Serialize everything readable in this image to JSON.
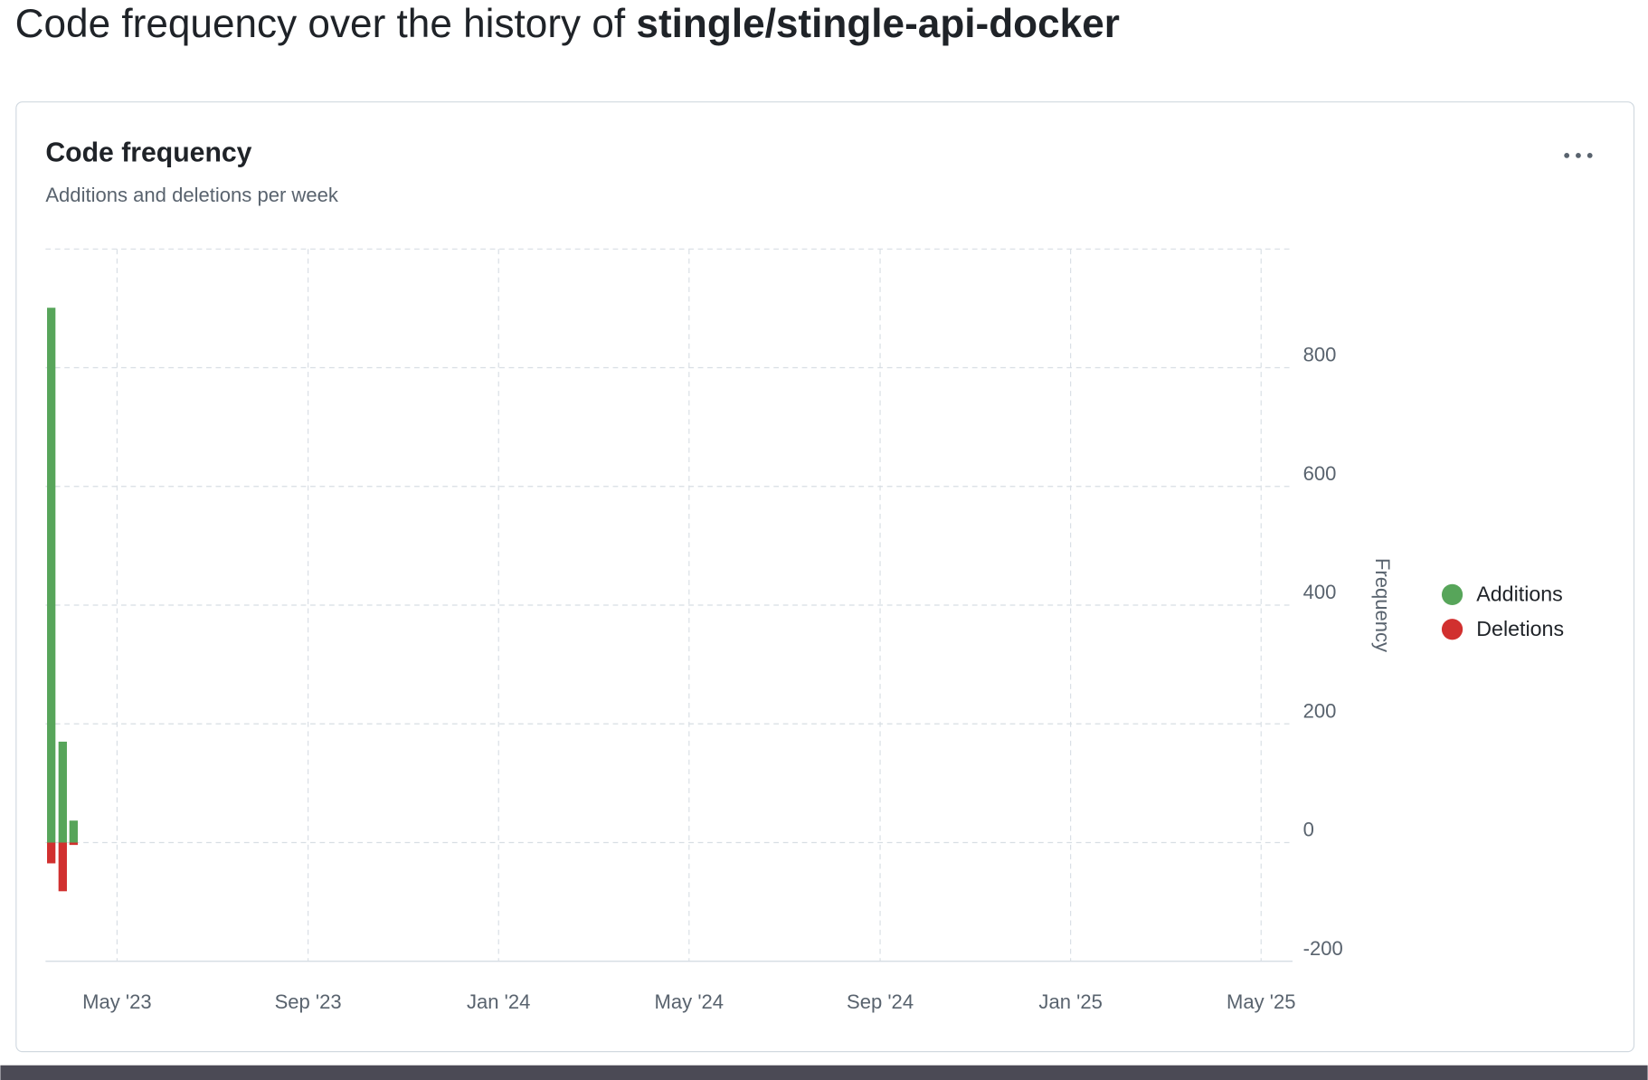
{
  "header": {
    "title_prefix": "Code frequency over the history of",
    "repo": "stingle/stingle-api-docker"
  },
  "chart_data": {
    "type": "bar",
    "title": "Code frequency",
    "subtitle": "Additions and deletions per week",
    "ylabel": "Frequency",
    "x": [
      2023.218,
      2023.238,
      2023.257
    ],
    "series": [
      {
        "name": "Additions",
        "color": "#57a55a",
        "values": [
          901,
          170,
          37
        ]
      },
      {
        "name": "Deletions",
        "color": "#d1302f",
        "values": [
          -35,
          -82,
          -4
        ]
      }
    ],
    "xlim": [
      2023.208,
      2025.388
    ],
    "xticks": [
      {
        "value": 2023.333,
        "label": "May '23"
      },
      {
        "value": 2023.667,
        "label": "Sep '23"
      },
      {
        "value": 2024.0,
        "label": "Jan '24"
      },
      {
        "value": 2024.333,
        "label": "May '24"
      },
      {
        "value": 2024.667,
        "label": "Sep '24"
      },
      {
        "value": 2025.0,
        "label": "Jan '25"
      },
      {
        "value": 2025.333,
        "label": "May '25"
      }
    ],
    "ylim": [
      -200,
      1000
    ],
    "yticks": [
      -200,
      0,
      200,
      400,
      600,
      800
    ],
    "grid": true
  }
}
